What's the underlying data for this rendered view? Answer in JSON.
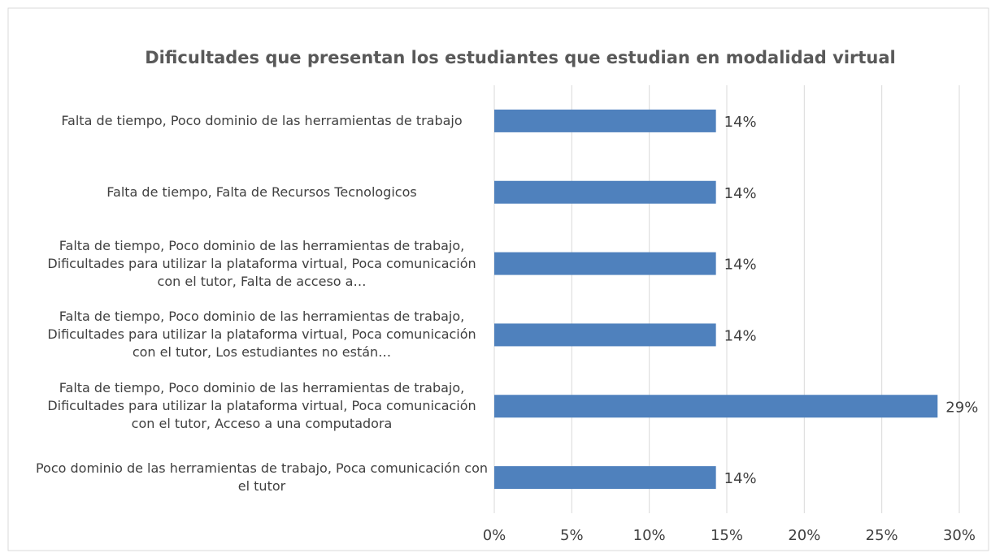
{
  "chart_data": {
    "type": "hbar",
    "title": "Dificultades que presentan los estudiantes que estudian en modalidad virtual",
    "categories": [
      "Falta de tiempo, Poco dominio de las herramientas de trabajo",
      "Falta de tiempo, Falta de Recursos Tecnologicos",
      "Falta de tiempo, Poco dominio de las herramientas de trabajo, Dificultades para utilizar la plataforma virtual, Poca comunicación con el tutor, Falta de acceso a…",
      "Falta de tiempo, Poco dominio de las herramientas de trabajo, Dificultades para utilizar la plataforma virtual, Poca comunicación con el tutor, Los estudiantes no están…",
      "Falta de tiempo, Poco dominio de las herramientas de trabajo, Dificultades para utilizar la plataforma virtual, Poca comunicación con el tutor, Acceso a una computadora",
      "Poco dominio de las herramientas de trabajo, Poca comunicación con el tutor"
    ],
    "values": [
      14.3,
      14.3,
      14.3,
      14.3,
      28.6,
      14.3
    ],
    "value_labels": [
      "14%",
      "14%",
      "14%",
      "14%",
      "29%",
      "14%"
    ],
    "color": "#4f81bd",
    "xlim": [
      0,
      30
    ],
    "xticks": [
      {
        "value": 0,
        "label": "0%"
      },
      {
        "value": 5,
        "label": "5%"
      },
      {
        "value": 10,
        "label": "10%"
      },
      {
        "value": 15,
        "label": "15%"
      },
      {
        "value": 20,
        "label": "20%"
      },
      {
        "value": 25,
        "label": "25%"
      },
      {
        "value": 30,
        "label": "30%"
      }
    ],
    "grid": true
  }
}
